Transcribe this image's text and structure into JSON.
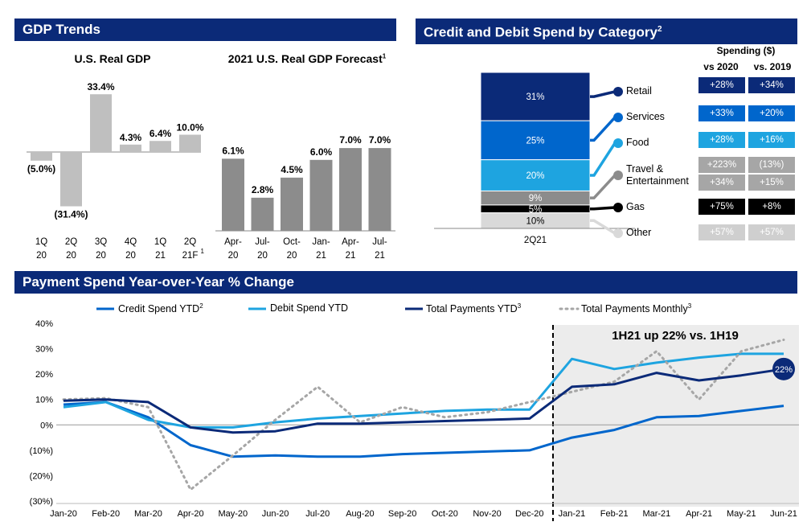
{
  "colors": {
    "banner": "#0b2a78",
    "navy": "#0b2a78",
    "blue": "#0066cc",
    "light_blue": "#1ea4e0",
    "gray_bar": "#8c8c8c",
    "light_gray_bar": "#bfbfbf",
    "table_gray": "#a6a6a6",
    "table_light": "#cfcfcf"
  },
  "gdp_section": {
    "title": "GDP Trends",
    "real_gdp": {
      "title": "U.S. Real GDP",
      "ticks": [
        [
          "1Q",
          "20"
        ],
        [
          "2Q",
          "20"
        ],
        [
          "3Q",
          "20"
        ],
        [
          "4Q",
          "20"
        ],
        [
          "1Q",
          "21"
        ],
        [
          "2Q",
          "21F"
        ]
      ],
      "tick_superscript": "1"
    },
    "forecast": {
      "title": "2021 U.S. Real GDP Forecast",
      "title_superscript": "1",
      "ticks": [
        [
          "Apr-",
          "20"
        ],
        [
          "Jul-",
          "20"
        ],
        [
          "Oct-",
          "20"
        ],
        [
          "Jan-",
          "21"
        ],
        [
          "Apr-",
          "21"
        ],
        [
          "Jul-",
          "21"
        ]
      ]
    }
  },
  "category_section": {
    "title": "Credit and Debit Spend by Category",
    "title_superscript": "2",
    "bar_label": "2Q21",
    "segments": [
      {
        "name": "Retail",
        "label": "31%",
        "value": 31,
        "color": "#0b2a78"
      },
      {
        "name": "Services",
        "label": "25%",
        "value": 25,
        "color": "#0066cc"
      },
      {
        "name": "Food",
        "label": "20%",
        "value": 20,
        "color": "#1ea4e0"
      },
      {
        "name": "Travel & Entertainment",
        "label": "9%",
        "value": 9,
        "color": "#8c8c8c"
      },
      {
        "name": "Gas",
        "label": "5%",
        "value": 5,
        "color": "#000000"
      },
      {
        "name": "Other",
        "label": "10%",
        "value": 10,
        "color": "#d9d9d9"
      }
    ],
    "legend": {
      "retail": "Retail",
      "services": "Services",
      "food": "Food",
      "travel_line1": "Travel &",
      "travel_line2": "Entertainment",
      "gas": "Gas",
      "other": "Other"
    },
    "table": {
      "header": "Spending ($)",
      "col1": "vs 2020",
      "col2": "vs. 2019",
      "rows": [
        {
          "v2020": "+28%",
          "v2019": "+34%",
          "color": "#0b2a78"
        },
        {
          "v2020": "+33%",
          "v2019": "+20%",
          "color": "#0066cc"
        },
        {
          "v2020": "+28%",
          "v2019": "+16%",
          "color": "#1ea4e0"
        },
        {
          "v2020": "+223%",
          "v2019": "(13%)",
          "color": "#a6a6a6"
        },
        {
          "v2020": "+34%",
          "v2019": "+15%",
          "color": "#a6a6a6"
        },
        {
          "v2020": "+75%",
          "v2019": "+8%",
          "color": "#000000"
        },
        {
          "v2020": "+57%",
          "v2019": "+57%",
          "color": "#cfcfcf"
        }
      ]
    }
  },
  "payment_section": {
    "title": "Payment Spend Year-over-Year % Change",
    "legend": {
      "credit": "Credit Spend YTD",
      "credit_sup": "2",
      "debit": "Debit Spend YTD",
      "total": "Total Payments YTD",
      "total_sup": "3",
      "monthly": "Total Payments Monthly",
      "monthly_sup": "3"
    },
    "annotation": "1H21 up 22% vs. 1H19",
    "end_badge": "22%"
  },
  "chart_data": [
    {
      "type": "bar",
      "title": "U.S. Real GDP",
      "categories": [
        "1Q 20",
        "2Q 20",
        "3Q 20",
        "4Q 20",
        "1Q 21",
        "2Q 21F"
      ],
      "values": [
        -5.0,
        -31.4,
        33.4,
        4.3,
        6.4,
        10.0
      ],
      "labels": [
        "(5.0%)",
        "(31.4%)",
        "33.4%",
        "4.3%",
        "6.4%",
        "10.0%"
      ]
    },
    {
      "type": "bar",
      "title": "2021 U.S. Real GDP Forecast",
      "categories": [
        "Apr-20",
        "Jul-20",
        "Oct-20",
        "Jan-21",
        "Apr-21",
        "Jul-21"
      ],
      "values": [
        6.1,
        2.8,
        4.5,
        6.0,
        7.0,
        7.0
      ],
      "labels": [
        "6.1%",
        "2.8%",
        "4.5%",
        "6.0%",
        "7.0%",
        "7.0%"
      ]
    },
    {
      "type": "bar",
      "title": "Credit and Debit Spend by Category",
      "categories": [
        "2Q21"
      ],
      "series": [
        {
          "name": "Retail",
          "values": [
            31
          ]
        },
        {
          "name": "Services",
          "values": [
            25
          ]
        },
        {
          "name": "Food",
          "values": [
            20
          ]
        },
        {
          "name": "Travel & Entertainment",
          "values": [
            9
          ]
        },
        {
          "name": "Gas",
          "values": [
            5
          ]
        },
        {
          "name": "Other",
          "values": [
            10
          ]
        }
      ]
    },
    {
      "type": "line",
      "title": "Payment Spend Year-over-Year % Change",
      "x": [
        "Jan-20",
        "Feb-20",
        "Mar-20",
        "Apr-20",
        "May-20",
        "Jun-20",
        "Jul-20",
        "Aug-20",
        "Sep-20",
        "Oct-20",
        "Nov-20",
        "Dec-20",
        "Jan-21",
        "Feb-21",
        "Mar-21",
        "Apr-21",
        "May-21",
        "Jun-21"
      ],
      "y_ticks": [
        "40%",
        "30%",
        "20%",
        "10%",
        "0%",
        "(10%)",
        "(20%)",
        "(30%)"
      ],
      "ylim": [
        -30,
        40
      ],
      "series": [
        {
          "name": "Credit Spend YTD",
          "color": "#0066cc",
          "values": [
            8,
            9,
            3,
            -8,
            -12.5,
            -12,
            -12.5,
            -12.5,
            -11.5,
            -11,
            -10.5,
            -10,
            -5,
            -2,
            3,
            3.5,
            5.5,
            7.5
          ]
        },
        {
          "name": "Debit Spend YTD",
          "color": "#1ea4e0",
          "values": [
            7,
            9,
            2,
            -1,
            -1,
            1,
            2.5,
            3.5,
            4.5,
            5.5,
            6,
            6,
            26,
            22,
            24.5,
            26.5,
            28,
            28
          ]
        },
        {
          "name": "Total Payments YTD",
          "color": "#0b2a78",
          "values": [
            9.5,
            10,
            9,
            -1,
            -3,
            -2.5,
            0.5,
            0.5,
            1,
            1.5,
            2,
            2.5,
            15,
            16,
            20.5,
            17.5,
            19.5,
            22
          ]
        },
        {
          "name": "Total Payments Monthly",
          "color": "#a6a6a6",
          "values": [
            10,
            10.5,
            7,
            -25.5,
            -12,
            2,
            15,
            1,
            7,
            3,
            5,
            9,
            13,
            17,
            29,
            10,
            29,
            33.5
          ]
        }
      ]
    }
  ]
}
